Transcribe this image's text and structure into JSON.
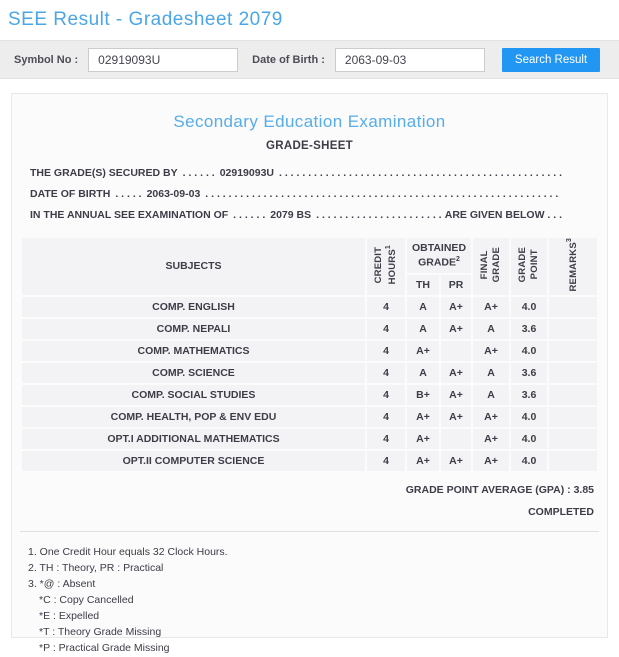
{
  "page": {
    "title": "SEE Result - Gradesheet 2079"
  },
  "search_bar": {
    "symbol_label": "Symbol No :",
    "symbol_value": "02919093U",
    "dob_label": "Date of Birth :",
    "dob_value": "2063-09-03",
    "button_label": "Search Result",
    "button_color": "#2196f3"
  },
  "gradesheet": {
    "exam_title": "Secondary Education Examination",
    "sheet_title": "GRADE-SHEET",
    "dots_fill": ". . . . . . . . . . . . . . . . . . . . . . . . . . . . . . . . . . . . . . . . . . . . . . . . . . . . . . . . . . . . . . . . . . . . . . . . . . . . . . . . . . . . . . . . . . . . . . . . . . . . . . . . . . . . . . . . . . . .",
    "line_secured": {
      "label": "THE GRADE(S) SECURED BY",
      "dots": ". . . . . .",
      "value": "02919093U"
    },
    "line_dob": {
      "label": "DATE OF BIRTH",
      "dots": ". . . . .",
      "value": "2063-09-03"
    },
    "line_exam": {
      "label": "IN THE ANNUAL SEE EXAMINATION OF",
      "dots": ". . . . . .",
      "value": "2079 BS",
      "suffix": "ARE GIVEN BELOW . . ."
    }
  },
  "table": {
    "headers": {
      "subjects": "SUBJECTS",
      "credit_line1": "CREDIT",
      "credit_line2": "HOURS",
      "credit_sup": "1",
      "obtained_line1": "OBTAINED",
      "obtained_line2": "GRADE",
      "obtained_sup": "2",
      "th": "TH",
      "pr": "PR",
      "final_line1": "FINAL",
      "final_line2": "GRADE",
      "gp_line1": "GRADE",
      "gp_line2": "POINT",
      "remarks": "REMARKS",
      "remarks_sup": "3"
    },
    "rows": [
      {
        "subject": "COMP. ENGLISH",
        "credit": "4",
        "th": "A",
        "pr": "A+",
        "final": "A+",
        "gp": "4.0",
        "remarks": ""
      },
      {
        "subject": "COMP. NEPALI",
        "credit": "4",
        "th": "A",
        "pr": "A+",
        "final": "A",
        "gp": "3.6",
        "remarks": ""
      },
      {
        "subject": "COMP. MATHEMATICS",
        "credit": "4",
        "th": "A+",
        "pr": "",
        "final": "A+",
        "gp": "4.0",
        "remarks": ""
      },
      {
        "subject": "COMP. SCIENCE",
        "credit": "4",
        "th": "A",
        "pr": "A+",
        "final": "A",
        "gp": "3.6",
        "remarks": ""
      },
      {
        "subject": "COMP. SOCIAL STUDIES",
        "credit": "4",
        "th": "B+",
        "pr": "A+",
        "final": "A",
        "gp": "3.6",
        "remarks": ""
      },
      {
        "subject": "COMP. HEALTH, POP & ENV EDU",
        "credit": "4",
        "th": "A+",
        "pr": "A+",
        "final": "A+",
        "gp": "4.0",
        "remarks": ""
      },
      {
        "subject": "OPT.I ADDITIONAL MATHEMATICS",
        "credit": "4",
        "th": "A+",
        "pr": "",
        "final": "A+",
        "gp": "4.0",
        "remarks": ""
      },
      {
        "subject": "OPT.II COMPUTER SCIENCE",
        "credit": "4",
        "th": "A+",
        "pr": "A+",
        "final": "A+",
        "gp": "4.0",
        "remarks": ""
      }
    ]
  },
  "summary": {
    "gpa_label": "GRADE POINT AVERAGE (GPA) : ",
    "gpa_value": "3.85",
    "status": "COMPLETED"
  },
  "notes": [
    {
      "text": "1. One Credit Hour equals 32 Clock Hours.",
      "indent": false
    },
    {
      "text": "2. TH : Theory, PR : Practical",
      "indent": false
    },
    {
      "text": "3. *@ : Absent",
      "indent": false
    },
    {
      "text": "*C : Copy Cancelled",
      "indent": true
    },
    {
      "text": "*E : Expelled",
      "indent": true
    },
    {
      "text": "*T : Theory Grade Missing",
      "indent": true
    },
    {
      "text": "*P : Practical Grade Missing",
      "indent": true
    }
  ],
  "colors": {
    "accent_blue": "#4ba6e8",
    "button_blue": "#2196f3",
    "text_navy": "#3d3d48",
    "bar_gray": "#ededee"
  }
}
